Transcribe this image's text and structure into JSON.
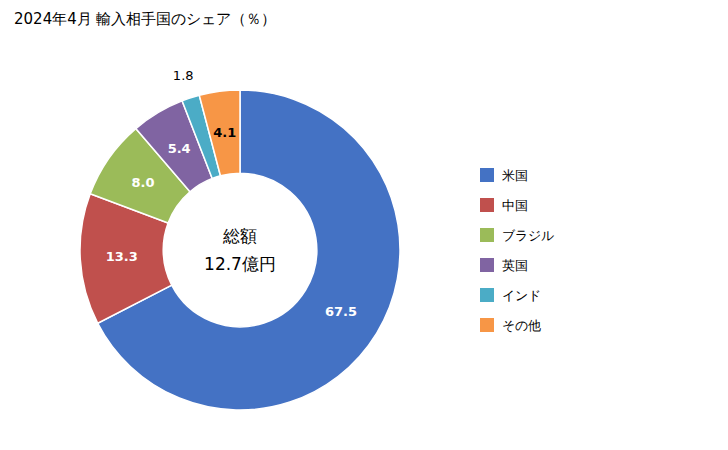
{
  "chart_data": {
    "type": "pie",
    "title": "2024年4月 輸入相手国のシェア（％）",
    "categories": [
      "米国",
      "中国",
      "ブラジル",
      "英国",
      "インド",
      "その他"
    ],
    "values": [
      67.5,
      13.3,
      8.0,
      5.4,
      1.8,
      4.1
    ],
    "value_labels": [
      "67.5",
      "13.3",
      "8.0",
      "5.4",
      "1.8",
      "4.1"
    ],
    "colors": [
      "#4472C4",
      "#C0504D",
      "#9BBB59",
      "#8064A2",
      "#4BACC6",
      "#F79646"
    ],
    "annotations": [
      "総額",
      "12.7億円"
    ],
    "data_labels": true,
    "legend": "right"
  }
}
